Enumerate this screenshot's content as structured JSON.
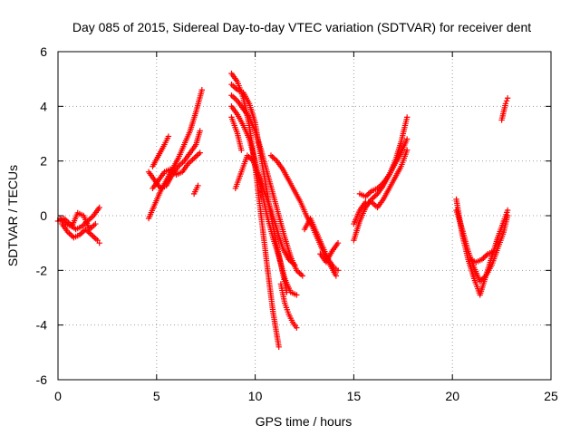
{
  "chart_data": {
    "type": "scatter",
    "title": "Day 085 of 2015, Sidereal Day-to-day VTEC variation (SDTVAR) for receiver dent",
    "xlabel": "GPS time / hours",
    "ylabel": "SDTVAR / TECUs",
    "xlim": [
      0,
      25
    ],
    "ylim": [
      -6,
      6
    ],
    "xticks": [
      0,
      5,
      10,
      15,
      20,
      25
    ],
    "yticks": [
      -6,
      -4,
      -2,
      0,
      2,
      4,
      6
    ],
    "grid": true,
    "marker": "plus",
    "series_color": "#ff0000",
    "series": [
      {
        "x": [
          0.0,
          0.3,
          0.6,
          0.9,
          1.2,
          1.5,
          1.8,
          2.1
        ],
        "y": [
          -0.2,
          -0.1,
          -0.3,
          -0.5,
          -0.4,
          -0.2,
          0.0,
          0.3
        ]
      },
      {
        "x": [
          0.2,
          0.5,
          0.8,
          1.1,
          1.4,
          1.7,
          2.0,
          2.1
        ],
        "y": [
          -0.3,
          -0.6,
          -0.8,
          -0.7,
          -0.5,
          -0.7,
          -0.9,
          -1.0
        ]
      },
      {
        "x": [
          0.1,
          0.4,
          0.7,
          1.0,
          1.3,
          1.6,
          1.9
        ],
        "y": [
          -0.1,
          -0.3,
          -0.4,
          0.1,
          0.0,
          -0.5,
          -0.3
        ]
      },
      {
        "x": [
          4.6,
          4.9,
          5.2,
          5.5,
          5.8,
          6.1,
          6.4,
          6.7,
          7.0,
          7.3
        ],
        "y": [
          -0.1,
          0.4,
          0.9,
          1.3,
          1.7,
          2.1,
          2.6,
          3.1,
          3.8,
          4.6
        ]
      },
      {
        "x": [
          4.6,
          4.9,
          5.2,
          5.5,
          5.8,
          6.1,
          6.4,
          6.7,
          7.0,
          7.2
        ],
        "y": [
          1.6,
          1.3,
          1.0,
          1.1,
          1.5,
          1.8,
          2.0,
          2.3,
          2.6,
          3.1
        ]
      },
      {
        "x": [
          4.8,
          5.1,
          5.4,
          5.7,
          6.0,
          6.3,
          6.6,
          6.9,
          7.2
        ],
        "y": [
          1.0,
          1.3,
          1.6,
          1.7,
          1.5,
          1.6,
          1.9,
          2.1,
          2.3
        ]
      },
      {
        "x": [
          4.8,
          5.1,
          5.4,
          5.6
        ],
        "y": [
          1.8,
          2.2,
          2.6,
          2.9
        ]
      },
      {
        "x": [
          6.9,
          7.1
        ],
        "y": [
          0.8,
          1.1
        ]
      },
      {
        "x": [
          8.8,
          9.1,
          9.4,
          9.7,
          10.0,
          10.3,
          10.6,
          10.9,
          11.2
        ],
        "y": [
          5.2,
          4.9,
          4.3,
          3.3,
          1.8,
          0.0,
          -1.8,
          -3.5,
          -4.8
        ]
      },
      {
        "x": [
          8.8,
          9.1,
          9.4,
          9.7,
          10.0,
          10.2,
          10.5,
          10.8,
          11.1,
          11.4,
          11.6
        ],
        "y": [
          4.8,
          4.6,
          4.5,
          4.1,
          3.4,
          2.5,
          1.3,
          0.0,
          -1.1,
          -2.1,
          -2.8
        ]
      },
      {
        "x": [
          8.8,
          9.1,
          9.4,
          9.7,
          10.0,
          10.3,
          10.6,
          10.9,
          11.2,
          11.5,
          11.8,
          12.1,
          12.4
        ],
        "y": [
          4.4,
          4.2,
          3.9,
          3.6,
          3.1,
          2.4,
          1.6,
          0.8,
          0.0,
          -0.8,
          -1.5,
          -2.0,
          -2.2
        ]
      },
      {
        "x": [
          8.8,
          9.1,
          9.4,
          9.7,
          10.0,
          10.3,
          10.6,
          10.9,
          11.2,
          11.5,
          11.8,
          12.1
        ],
        "y": [
          4.0,
          3.7,
          3.3,
          2.8,
          2.0,
          1.0,
          0.0,
          -0.8,
          -1.5,
          -2.3,
          -2.8,
          -2.9
        ]
      },
      {
        "x": [
          8.8,
          9.1,
          9.3
        ],
        "y": [
          3.6,
          3.0,
          2.4
        ]
      },
      {
        "x": [
          9.0,
          9.3,
          9.6,
          9.9,
          10.2,
          10.5,
          10.8,
          11.1,
          11.4,
          11.7,
          12.0
        ],
        "y": [
          1.0,
          1.6,
          2.2,
          2.0,
          1.4,
          0.8,
          0.2,
          -0.5,
          -1.2,
          -1.6,
          -1.8
        ]
      },
      {
        "x": [
          11.3,
          11.5,
          11.7,
          11.9,
          12.1
        ],
        "y": [
          -2.5,
          -3.2,
          -3.6,
          -3.9,
          -4.1
        ]
      },
      {
        "x": [
          10.8,
          11.1,
          11.4,
          11.7,
          12.0,
          12.3,
          12.6,
          12.9,
          13.2,
          13.5,
          13.8,
          14.1
        ],
        "y": [
          2.2,
          2.0,
          1.7,
          1.3,
          0.9,
          0.5,
          0.0,
          -0.4,
          -0.9,
          -1.4,
          -1.8,
          -2.2
        ]
      },
      {
        "x": [
          12.5,
          12.8,
          13.1,
          13.4,
          13.7,
          14.0,
          14.2
        ],
        "y": [
          -0.5,
          -0.1,
          -0.6,
          -1.1,
          -1.6,
          -1.9,
          -2.0
        ]
      },
      {
        "x": [
          13.3,
          13.6,
          13.9,
          14.2
        ],
        "y": [
          -1.4,
          -1.7,
          -1.3,
          -1.0
        ]
      },
      {
        "x": [
          15.0,
          15.3,
          15.6,
          15.9,
          16.2,
          16.5,
          16.8,
          17.1,
          17.4,
          17.7
        ],
        "y": [
          -0.9,
          -0.2,
          0.3,
          0.6,
          0.8,
          1.1,
          1.5,
          2.0,
          2.7,
          3.6
        ]
      },
      {
        "x": [
          15.0,
          15.3,
          15.6,
          15.9,
          16.2,
          16.5,
          16.8,
          17.1,
          17.4,
          17.7
        ],
        "y": [
          -0.3,
          0.2,
          0.5,
          0.5,
          0.3,
          0.6,
          1.0,
          1.4,
          1.8,
          2.4
        ]
      },
      {
        "x": [
          15.3,
          15.6,
          15.9,
          16.2,
          16.5,
          16.8,
          17.1,
          17.4,
          17.7
        ],
        "y": [
          0.8,
          0.7,
          0.9,
          1.0,
          1.2,
          1.5,
          1.9,
          2.3,
          2.8
        ]
      },
      {
        "x": [
          20.2,
          20.5,
          20.8,
          21.1,
          21.4,
          21.7,
          22.0,
          22.3,
          22.6,
          22.8
        ],
        "y": [
          0.6,
          -0.7,
          -1.6,
          -2.3,
          -2.9,
          -2.2,
          -1.5,
          -0.8,
          -0.2,
          0.2
        ]
      },
      {
        "x": [
          20.2,
          20.5,
          20.8,
          21.1,
          21.4,
          21.7,
          22.0,
          22.3,
          22.6,
          22.8
        ],
        "y": [
          0.2,
          -0.5,
          -1.3,
          -1.9,
          -2.4,
          -2.2,
          -1.8,
          -1.2,
          -0.6,
          0.0
        ]
      },
      {
        "x": [
          20.9,
          21.2,
          21.5,
          21.8,
          22.1
        ],
        "y": [
          -1.6,
          -1.7,
          -1.6,
          -1.4,
          -1.3
        ]
      },
      {
        "x": [
          22.5,
          22.6,
          22.7,
          22.8
        ],
        "y": [
          3.5,
          3.8,
          4.1,
          4.3
        ]
      }
    ]
  }
}
